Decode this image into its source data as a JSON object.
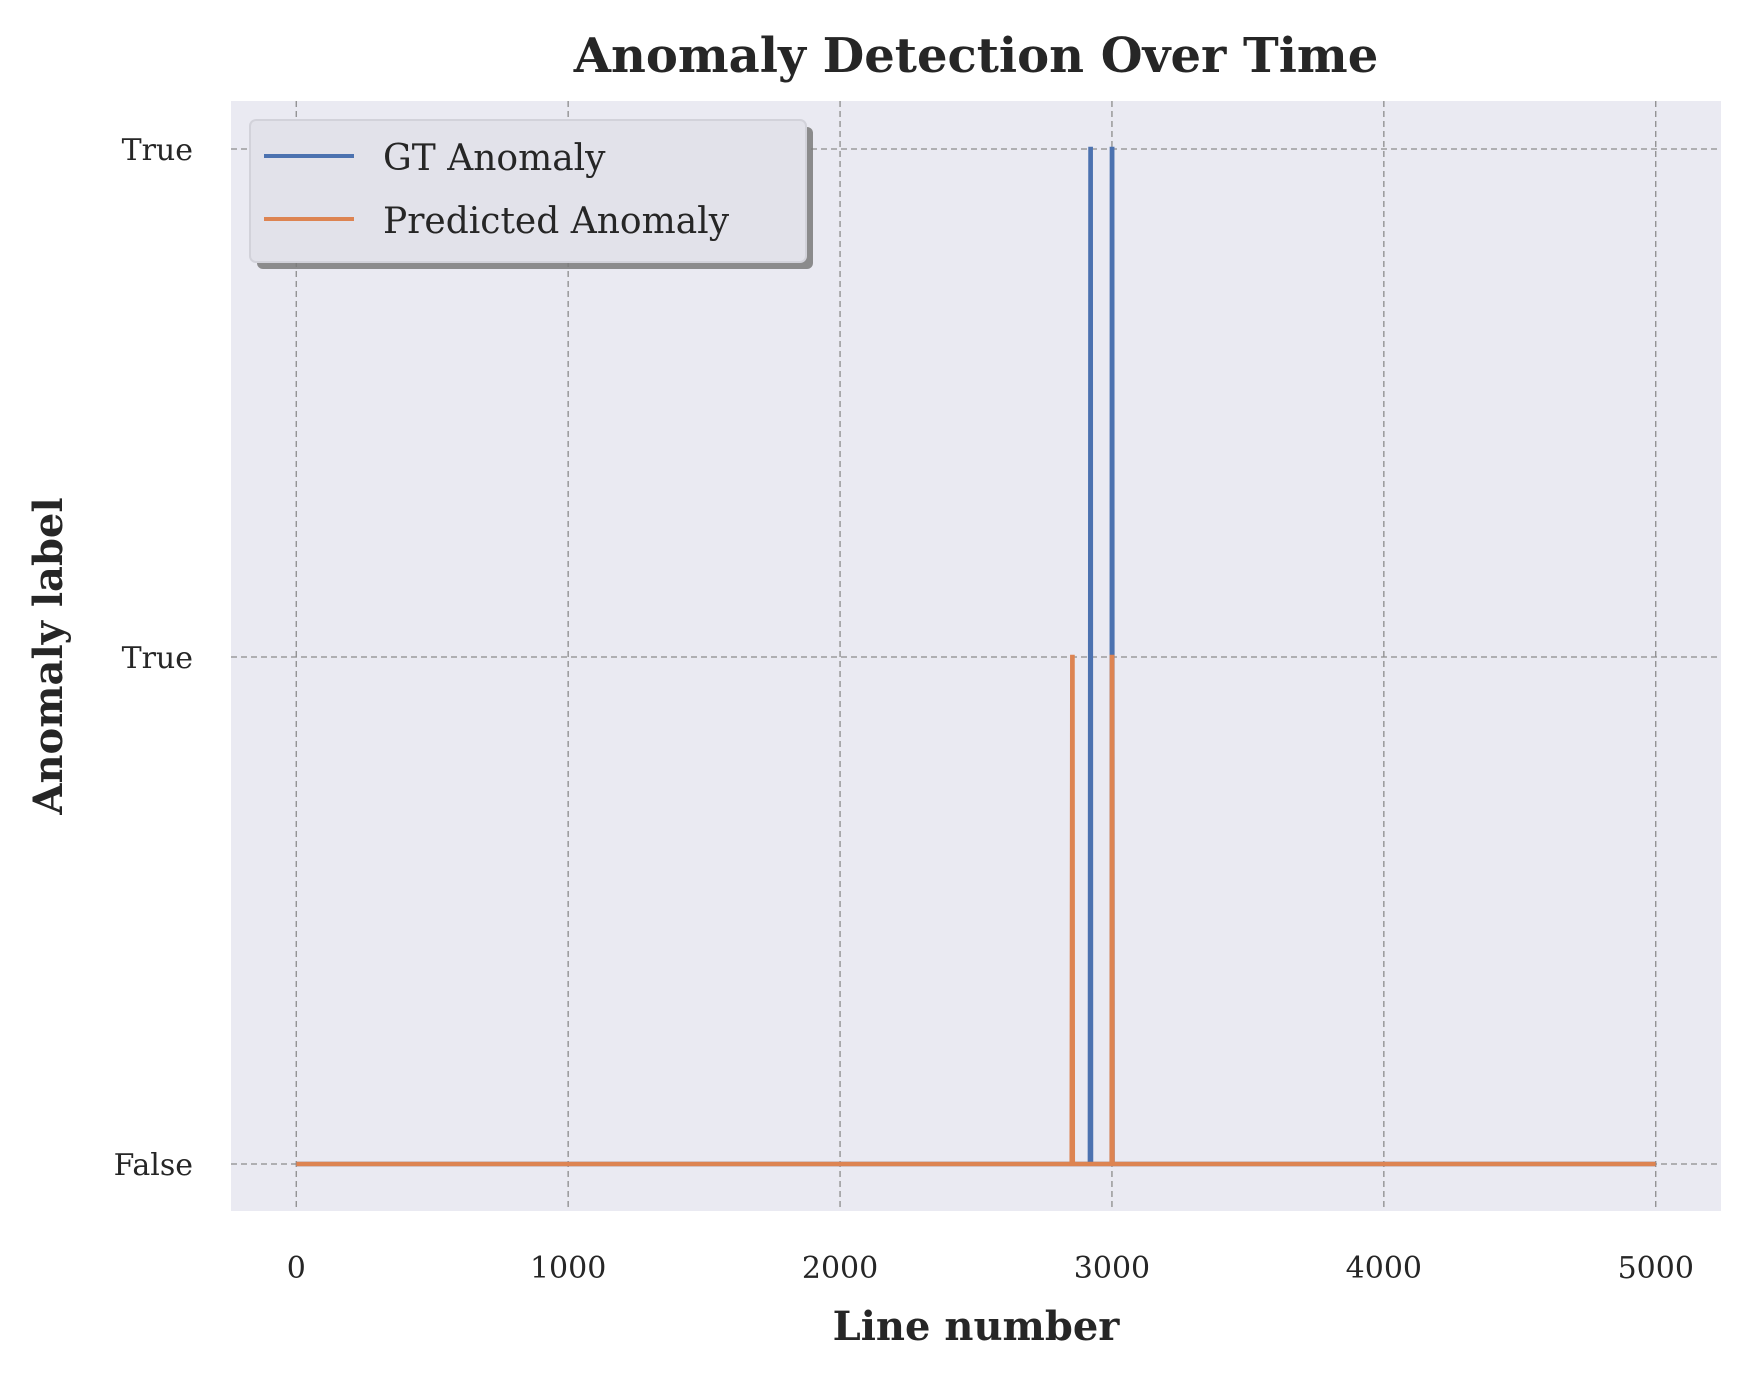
{
  "chart_data": {
    "type": "line",
    "title": "Anomaly Detection Over Time",
    "xlabel": "Line number",
    "ylabel": "Anomaly label",
    "xlim": [
      -240,
      5240
    ],
    "x_ticks": [
      0,
      1000,
      2000,
      3000,
      4000,
      5000
    ],
    "x_tick_labels": [
      "0",
      "1000",
      "2000",
      "3000",
      "4000",
      "5000"
    ],
    "y_levels": [
      0,
      1,
      2
    ],
    "y_tick_labels": [
      "False",
      "True",
      "True"
    ],
    "grid": true,
    "legend_placement": "top-left",
    "background_color": "#eaeaf2",
    "series": [
      {
        "name": "GT Anomaly",
        "color": "#4c72b0",
        "x": [
          0,
          2919,
          2921,
          2922,
          2923,
          2999,
          3000,
          3001,
          3002,
          5000
        ],
        "y": [
          0,
          0,
          2,
          2,
          0,
          0,
          2,
          2,
          0,
          0
        ]
      },
      {
        "name": "Predicted Anomaly",
        "color": "#dd8452",
        "x": [
          0,
          2852,
          2854,
          2855,
          2856,
          2999,
          3000,
          3001,
          3002,
          5000
        ],
        "y": [
          0,
          0,
          1,
          1,
          0,
          0,
          1,
          1,
          0,
          0
        ]
      }
    ]
  }
}
